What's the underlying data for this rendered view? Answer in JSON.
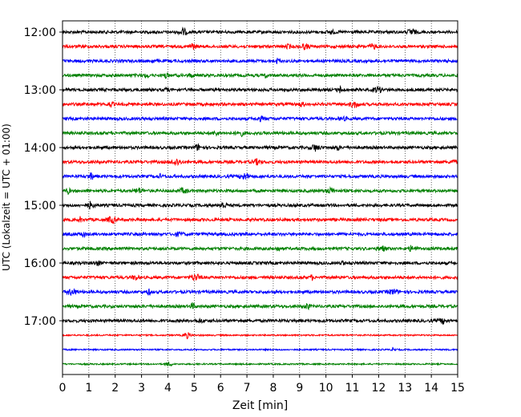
{
  "chart_data": {
    "type": "line",
    "title": "",
    "xlabel": "Zeit  [min]",
    "ylabel": "UTC (Lokalzeit = UTC + 01:00)",
    "xlim": [
      0,
      15
    ],
    "x_ticks": [
      "0",
      "1",
      "2",
      "3",
      "4",
      "5",
      "6",
      "7",
      "8",
      "9",
      "10",
      "11",
      "12",
      "13",
      "14",
      "15"
    ],
    "y_tick_labels": [
      "12:00",
      "13:00",
      "14:00",
      "15:00",
      "16:00",
      "17:00"
    ],
    "grid": "vertical dotted at each minute",
    "trace_interval_min": 15,
    "trace_colors_cycle": [
      "#000000",
      "#ff0000",
      "#0000ff",
      "#008000"
    ],
    "traces": [
      {
        "time": "12:00",
        "color": "#000000"
      },
      {
        "time": "12:15",
        "color": "#ff0000"
      },
      {
        "time": "12:30",
        "color": "#0000ff"
      },
      {
        "time": "12:45",
        "color": "#008000"
      },
      {
        "time": "13:00",
        "color": "#000000"
      },
      {
        "time": "13:15",
        "color": "#ff0000"
      },
      {
        "time": "13:30",
        "color": "#0000ff"
      },
      {
        "time": "13:45",
        "color": "#008000"
      },
      {
        "time": "14:00",
        "color": "#000000"
      },
      {
        "time": "14:15",
        "color": "#ff0000"
      },
      {
        "time": "14:30",
        "color": "#0000ff"
      },
      {
        "time": "14:45",
        "color": "#008000"
      },
      {
        "time": "15:00",
        "color": "#000000"
      },
      {
        "time": "15:15",
        "color": "#ff0000"
      },
      {
        "time": "15:30",
        "color": "#0000ff"
      },
      {
        "time": "15:45",
        "color": "#008000"
      },
      {
        "time": "16:00",
        "color": "#000000"
      },
      {
        "time": "16:15",
        "color": "#ff0000"
      },
      {
        "time": "16:30",
        "color": "#0000ff"
      },
      {
        "time": "16:45",
        "color": "#008000"
      },
      {
        "time": "17:00",
        "color": "#000000"
      },
      {
        "time": "17:15",
        "color": "#ff0000"
      },
      {
        "time": "17:30",
        "color": "#0000ff"
      },
      {
        "time": "17:45",
        "color": "#008000"
      }
    ]
  }
}
